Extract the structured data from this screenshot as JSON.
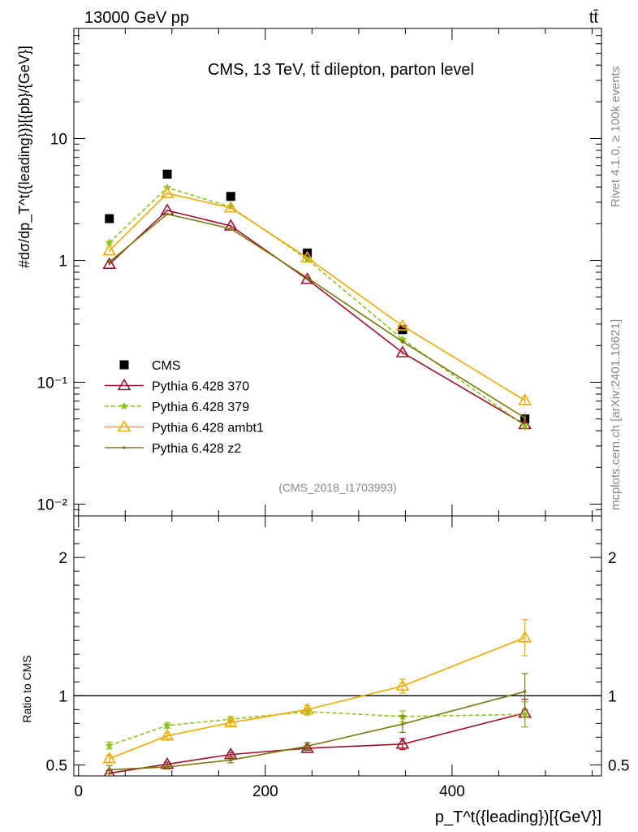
{
  "header": {
    "left": "13000 GeV pp",
    "right": "tt̄"
  },
  "side_labels": {
    "rivet": "Rivet 4.1.0, ≥ 100k events",
    "site": "mcplots.cern.ch [arXiv:2401.10621]"
  },
  "chart_data": [
    {
      "type": "line",
      "panel": "main",
      "title": "CMS, 13 TeV, tt̄ dilepton, parton level",
      "analysis_tag": "(CMS_2018_I1703993)",
      "ylabel": "#dσ/dp_T^t({leading})}[{pb}/{GeV}]",
      "yscale": "log",
      "ylim": [
        0.008,
        80
      ],
      "xlim": [
        -5,
        560
      ],
      "x": [
        33,
        95,
        163,
        245,
        347,
        478
      ],
      "yticks": [
        {
          "v": 0.01,
          "label": "10⁻²"
        },
        {
          "v": 0.1,
          "label": "10⁻¹"
        },
        {
          "v": 1,
          "label": "1"
        },
        {
          "v": 10,
          "label": "10"
        }
      ],
      "series": [
        {
          "name": "CMS",
          "color": "#000000",
          "marker": "square",
          "dash": "",
          "values": [
            2.2,
            5.1,
            3.35,
            1.15,
            0.27,
            0.05
          ],
          "errors": [
            0.06,
            0.12,
            0.08,
            0.03,
            0.01,
            0.004
          ]
        },
        {
          "name": "Pythia 6.428 370",
          "color": "#a0102a",
          "marker": "triangle-open",
          "dash": "",
          "values": [
            0.93,
            2.57,
            1.92,
            0.7,
            0.175,
            0.045
          ],
          "errors": [
            0.02,
            0.05,
            0.04,
            0.015,
            0.006,
            0.004
          ]
        },
        {
          "name": "Pythia 6.428 379",
          "color": "#8ec21f",
          "marker": "star",
          "dash": "5,3",
          "values": [
            1.4,
            3.95,
            2.75,
            1.02,
            0.225,
            0.044
          ],
          "errors": [
            0.03,
            0.08,
            0.05,
            0.02,
            0.008,
            0.004
          ]
        },
        {
          "name": "Pythia 6.428 ambt1",
          "color": "#f2a900",
          "marker": "triangle-open",
          "dash": "",
          "values": [
            1.2,
            3.55,
            2.7,
            1.05,
            0.29,
            0.071
          ],
          "errors": [
            0.03,
            0.07,
            0.05,
            0.02,
            0.01,
            0.006
          ]
        },
        {
          "name": "Pythia 6.428 z2",
          "color": "#7a7a10",
          "marker": "dot",
          "dash": "",
          "values": [
            0.97,
            2.4,
            1.82,
            0.72,
            0.215,
            0.051
          ],
          "errors": [
            0.02,
            0.05,
            0.04,
            0.015,
            0.008,
            0.005
          ]
        }
      ]
    },
    {
      "type": "line",
      "panel": "ratio",
      "ylabel": "Ratio to CMS",
      "xlabel": "p_T^t({leading})[{GeV}]",
      "ylim": [
        0.42,
        2.3
      ],
      "xlim": [
        -5,
        560
      ],
      "x": [
        33,
        95,
        163,
        245,
        347,
        478
      ],
      "reference": 1,
      "yticks": [
        {
          "v": 0.5,
          "label": "0.5"
        },
        {
          "v": 1,
          "label": "1"
        },
        {
          "v": 2,
          "label": "2"
        }
      ],
      "xticks": [
        {
          "v": 0,
          "label": "0"
        },
        {
          "v": 200,
          "label": "200"
        },
        {
          "v": 400,
          "label": "400"
        }
      ],
      "series": [
        {
          "name": "Pythia 6.428 370",
          "values": [
            0.44,
            0.505,
            0.575,
            0.62,
            0.65,
            0.875
          ],
          "errors": [
            0.02,
            0.015,
            0.015,
            0.015,
            0.04,
            0.1
          ]
        },
        {
          "name": "Pythia 6.428 379",
          "values": [
            0.64,
            0.785,
            0.83,
            0.885,
            0.85,
            0.865
          ],
          "errors": [
            0.025,
            0.02,
            0.02,
            0.025,
            0.04,
            0.09
          ]
        },
        {
          "name": "Pythia 6.428 ambt1",
          "values": [
            0.545,
            0.71,
            0.805,
            0.9,
            1.07,
            1.42
          ],
          "errors": [
            0.025,
            0.02,
            0.02,
            0.03,
            0.05,
            0.13
          ]
        },
        {
          "name": "Pythia 6.428 z2",
          "values": [
            0.465,
            0.485,
            0.535,
            0.635,
            0.795,
            1.03
          ],
          "errors": [
            0.03,
            0.015,
            0.02,
            0.025,
            0.06,
            0.13
          ]
        }
      ]
    }
  ]
}
